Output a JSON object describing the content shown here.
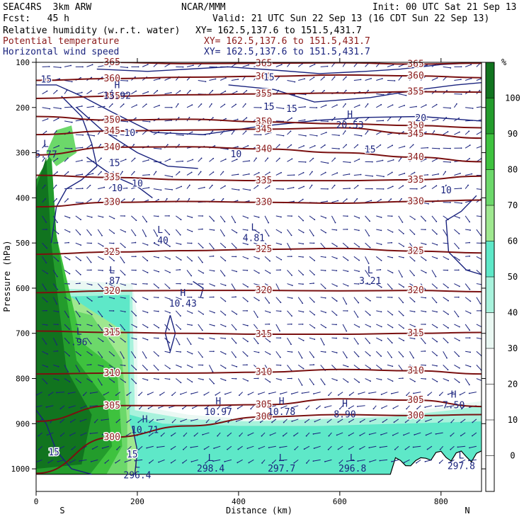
{
  "header": {
    "model": "SEAC4RS  3km ARW",
    "center": "NCAR/MMM",
    "init": "Init: 00 UTC Sat 21 Sep 13",
    "fcst": "Fcst:   45 h",
    "valid": "Valid: 21 UTC Sun 22 Sep 13 (16 CDT Sun 22 Sep 13)",
    "fields": [
      {
        "name": "Relative humidity (w.r.t. water)",
        "xy": "XY= 162.5,137.6 to 151.5,431.7",
        "color": "#000000"
      },
      {
        "name": "Potential temperature",
        "xy": "XY= 162.5,137.6 to 151.5,431.7",
        "color": "#8b1a1a"
      },
      {
        "name": "Horizontal wind speed",
        "xy": "XY= 162.5,137.6 to 151.5,431.7",
        "color": "#1a237e"
      }
    ]
  },
  "chart_data": {
    "type": "cross-section",
    "xlabel": "Distance (km)",
    "ylabel": "Pressure (hPa)",
    "x_ticks": [
      0,
      200,
      400,
      600,
      800
    ],
    "y_ticks": [
      100,
      200,
      300,
      400,
      500,
      600,
      700,
      800,
      900,
      1000
    ],
    "xlim": [
      0,
      880
    ],
    "ylim": [
      1050,
      100
    ],
    "endpoints": {
      "left": "S",
      "right": "N"
    },
    "colorbar": {
      "unit": "%",
      "ticks": [
        0,
        10,
        20,
        30,
        40,
        50,
        60,
        70,
        80,
        90,
        100
      ],
      "bands": [
        {
          "from": -10,
          "to": 30,
          "color": "#ffffff"
        },
        {
          "from": 30,
          "to": 40,
          "color": "#eaf8f3"
        },
        {
          "from": 40,
          "to": 50,
          "color": "#a8f2dc"
        },
        {
          "from": 50,
          "to": 60,
          "color": "#5ee8c8"
        },
        {
          "from": 60,
          "to": 70,
          "color": "#9fe88f"
        },
        {
          "from": 70,
          "to": 80,
          "color": "#6cd86a"
        },
        {
          "from": 80,
          "to": 90,
          "color": "#3ec23e"
        },
        {
          "from": 90,
          "to": 100,
          "color": "#239c2c"
        },
        {
          "from": 100,
          "to": 110,
          "color": "#11741f"
        }
      ]
    },
    "theta_contours": [
      {
        "label": "365",
        "y": [
          98,
          100,
          103,
          102,
          101,
          104,
          102
        ]
      },
      {
        "label": "360",
        "y": [
          140,
          136,
          133,
          131,
          128,
          130,
          134
        ]
      },
      {
        "label": "355",
        "y": [
          180,
          175,
          172,
          170,
          168,
          165,
          166
        ]
      },
      {
        "label": "350",
        "y": [
          220,
          228,
          226,
          232,
          236,
          240,
          245
        ]
      },
      {
        "label": "345",
        "y": [
          260,
          252,
          250,
          248,
          245,
          258,
          268
        ]
      },
      {
        "label": "340",
        "y": [
          305,
          288,
          287,
          292,
          300,
          310,
          320
        ]
      },
      {
        "label": "335",
        "y": [
          350,
          355,
          360,
          362,
          362,
          360,
          352
        ]
      },
      {
        "label": "330",
        "y": [
          420,
          410,
          408,
          410,
          412,
          408,
          405
        ]
      },
      {
        "label": "325",
        "y": [
          525,
          520,
          517,
          514,
          512,
          518,
          522
        ]
      },
      {
        "label": "320",
        "y": [
          610,
          606,
          605,
          605,
          606,
          605,
          608
        ]
      },
      {
        "label": "315",
        "y": [
          695,
          698,
          700,
          702,
          702,
          700,
          698
        ]
      },
      {
        "label": "310",
        "y": [
          790,
          788,
          788,
          786,
          780,
          783,
          790
        ]
      },
      {
        "label": "305",
        "y": [
          895,
          860,
          860,
          858,
          845,
          848,
          862
        ]
      },
      {
        "label": "300",
        "y": [
          1010,
          930,
          905,
          885,
          880,
          882,
          880
        ]
      }
    ],
    "theta_x": [
      0,
      150,
      300,
      450,
      600,
      750,
      880
    ],
    "ws_labels": [
      {
        "text": "15",
        "x": 20,
        "p": 145
      },
      {
        "text": "15",
        "x": 460,
        "p": 140
      },
      {
        "text": "10",
        "x": 185,
        "p": 263
      },
      {
        "text": "15",
        "x": 460,
        "p": 205
      },
      {
        "text": "15",
        "x": 505,
        "p": 210
      },
      {
        "text": "20",
        "x": 760,
        "p": 230
      },
      {
        "text": "15",
        "x": 660,
        "p": 300
      },
      {
        "text": "10",
        "x": 395,
        "p": 310
      },
      {
        "text": "15",
        "x": 155,
        "p": 330
      },
      {
        "text": "10",
        "x": 200,
        "p": 375
      },
      {
        "text": "10",
        "x": 160,
        "p": 385
      },
      {
        "text": "10",
        "x": 810,
        "p": 390
      },
      {
        "text": "15",
        "x": 35,
        "p": 970
      },
      {
        "text": "15",
        "x": 190,
        "p": 975
      }
    ],
    "extrema": [
      {
        "type": "H",
        "value": "13.92",
        "x": 160,
        "p": 170
      },
      {
        "type": "H",
        "value": "20.53",
        "x": 620,
        "p": 235
      },
      {
        "type": "L",
        "value": "5.77",
        "x": 0,
        "p": 300
      },
      {
        "type": "L",
        "value": ".40",
        "x": 245,
        "p": 490
      },
      {
        "type": "L",
        "value": "4.81",
        "x": 430,
        "p": 485
      },
      {
        "type": "L",
        "value": ".87",
        "x": 150,
        "p": 580
      },
      {
        "type": "L",
        "value": "3.21",
        "x": 660,
        "p": 580
      },
      {
        "type": "H",
        "value": "10.43",
        "x": 290,
        "p": 630
      },
      {
        "type": "L",
        "value": ".96",
        "x": 85,
        "p": 715
      },
      {
        "type": "H",
        "value": "10.97",
        "x": 360,
        "p": 870
      },
      {
        "type": "H",
        "value": "10.78",
        "x": 485,
        "p": 870
      },
      {
        "type": "H",
        "value": "8.90",
        "x": 610,
        "p": 875
      },
      {
        "type": "H",
        "value": "7.50",
        "x": 825,
        "p": 855
      },
      {
        "type": "H",
        "value": "10.71",
        "x": 215,
        "p": 910
      },
      {
        "type": "L",
        "value": "296.4",
        "x": 200,
        "p": 1010
      },
      {
        "type": "L",
        "value": "298.4",
        "x": 345,
        "p": 995
      },
      {
        "type": "L",
        "value": "297.7",
        "x": 485,
        "p": 995
      },
      {
        "type": "L",
        "value": "296.8",
        "x": 625,
        "p": 995
      },
      {
        "type": "L",
        "value": "297.8",
        "x": 840,
        "p": 990
      }
    ]
  }
}
